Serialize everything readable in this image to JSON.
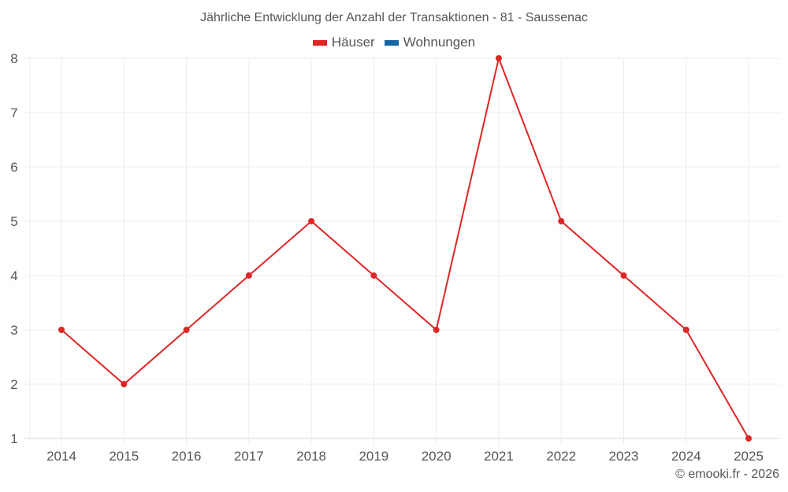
{
  "title": "Jährliche Entwicklung der Anzahl der Transaktionen - 81 - Saussenac",
  "legend": [
    {
      "label": "Häuser",
      "color": "#dd2626"
    },
    {
      "label": "Wohnungen",
      "color": "#1565a0"
    }
  ],
  "credit": "© emooki.fr - 2026",
  "chart_data": {
    "type": "line",
    "title": "Jährliche Entwicklung der Anzahl der Transaktionen - 81 - Saussenac",
    "xlabel": "",
    "ylabel": "",
    "categories": [
      "2014",
      "2015",
      "2016",
      "2017",
      "2018",
      "2019",
      "2020",
      "2021",
      "2022",
      "2023",
      "2024",
      "2025"
    ],
    "series": [
      {
        "name": "Häuser",
        "color": "#dd2626",
        "values": [
          3,
          2,
          3,
          4,
          5,
          4,
          3,
          8,
          5,
          4,
          3,
          1
        ]
      },
      {
        "name": "Wohnungen",
        "color": "#1565a0",
        "values": []
      }
    ],
    "ylim": [
      1,
      8
    ],
    "yticks": [
      1,
      2,
      3,
      4,
      5,
      6,
      7,
      8
    ],
    "grid": true,
    "legend_position": "top"
  }
}
